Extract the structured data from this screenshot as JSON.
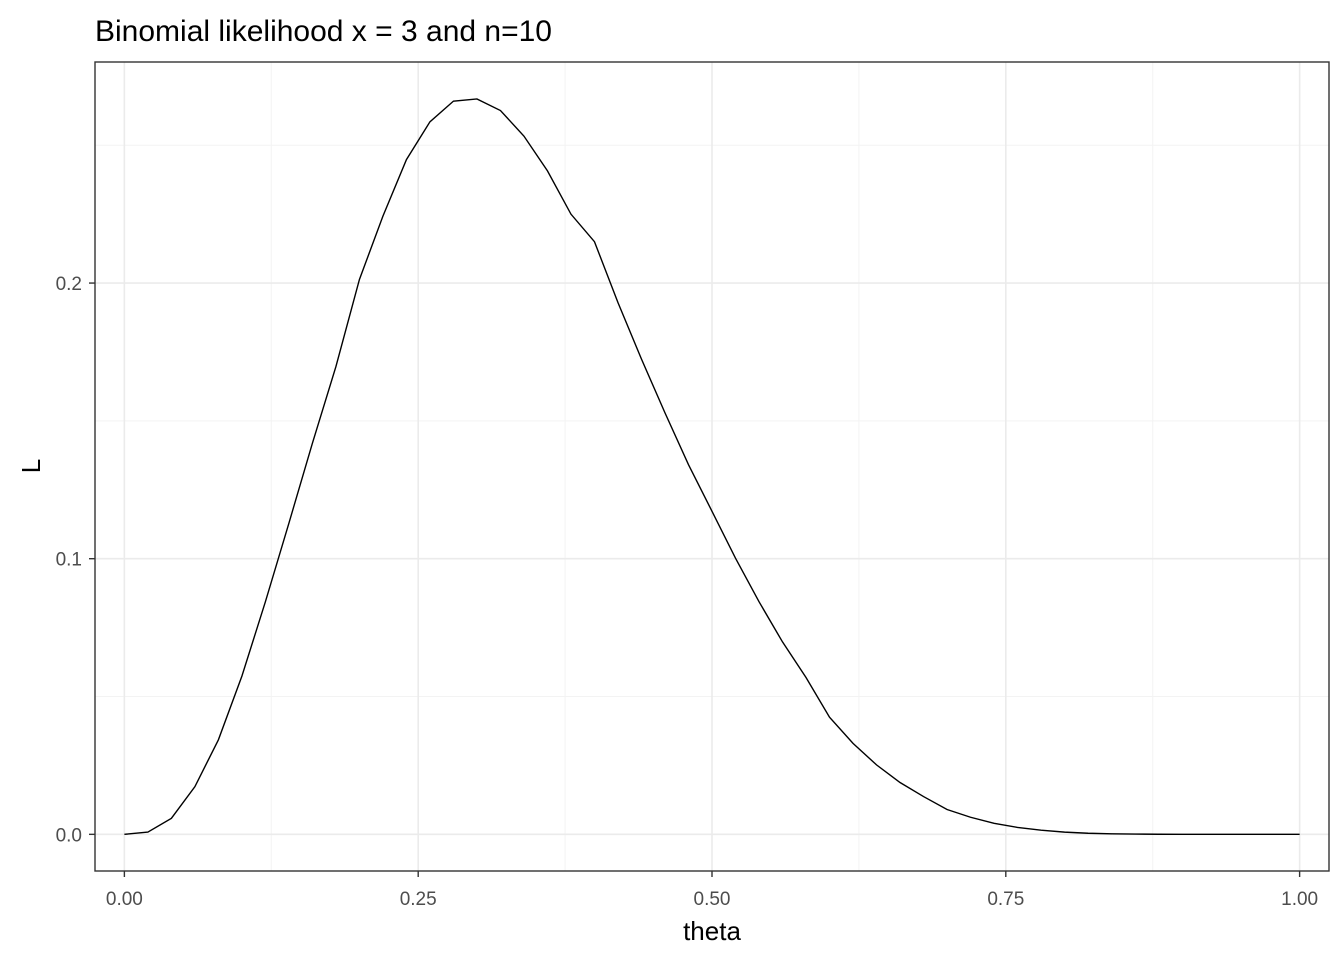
{
  "chart_data": {
    "type": "line",
    "title": "Binomial likelihood x = 3 and n=10",
    "xlabel": "theta",
    "ylabel": "L",
    "xlim": [
      -0.025,
      1.025
    ],
    "ylim": [
      -0.0133,
      0.2802
    ],
    "x_ticks": [
      0,
      0.25,
      0.5,
      0.75,
      1
    ],
    "x_tick_labels": [
      "0.00",
      "0.25",
      "0.50",
      "0.75",
      "1.00"
    ],
    "y_ticks": [
      0,
      0.1,
      0.2
    ],
    "y_tick_labels": [
      "0.0",
      "0.1",
      "0.2"
    ],
    "x_minor_ticks": [
      0.125,
      0.375,
      0.625,
      0.875
    ],
    "y_minor_ticks": [
      0.05,
      0.15,
      0.25
    ],
    "grid": true,
    "series": [
      {
        "x": [
          0,
          0.02,
          0.04,
          0.06,
          0.08,
          0.1,
          0.12,
          0.14,
          0.16,
          0.18,
          0.2,
          0.22,
          0.24,
          0.26,
          0.28,
          0.3,
          0.32,
          0.34,
          0.36,
          0.38,
          0.4,
          0.42,
          0.44,
          0.46,
          0.48,
          0.5,
          0.52,
          0.54,
          0.56,
          0.58,
          0.6,
          0.62,
          0.64,
          0.66,
          0.68,
          0.7,
          0.72,
          0.74,
          0.76,
          0.78,
          0.8,
          0.82,
          0.84,
          0.86,
          0.88,
          0.9,
          0.92,
          0.94,
          0.96,
          0.98,
          1
        ],
        "values": [
          0,
          0.0008,
          0.0058,
          0.0173,
          0.0343,
          0.0574,
          0.0844,
          0.1129,
          0.1419,
          0.1697,
          0.2013,
          0.2243,
          0.2448,
          0.2585,
          0.266,
          0.2668,
          0.2626,
          0.2533,
          0.2407,
          0.225,
          0.215,
          0.1929,
          0.1724,
          0.1529,
          0.1341,
          0.1172,
          0.1002,
          0.0844,
          0.0698,
          0.0569,
          0.0425,
          0.033,
          0.0252,
          0.0188,
          0.0137,
          0.009,
          0.0062,
          0.004,
          0.0025,
          0.0015,
          0.0008,
          0.0004,
          0.0002,
          0.0001,
          3e-05,
          1e-05,
          0,
          0,
          0,
          0,
          0
        ]
      }
    ]
  }
}
